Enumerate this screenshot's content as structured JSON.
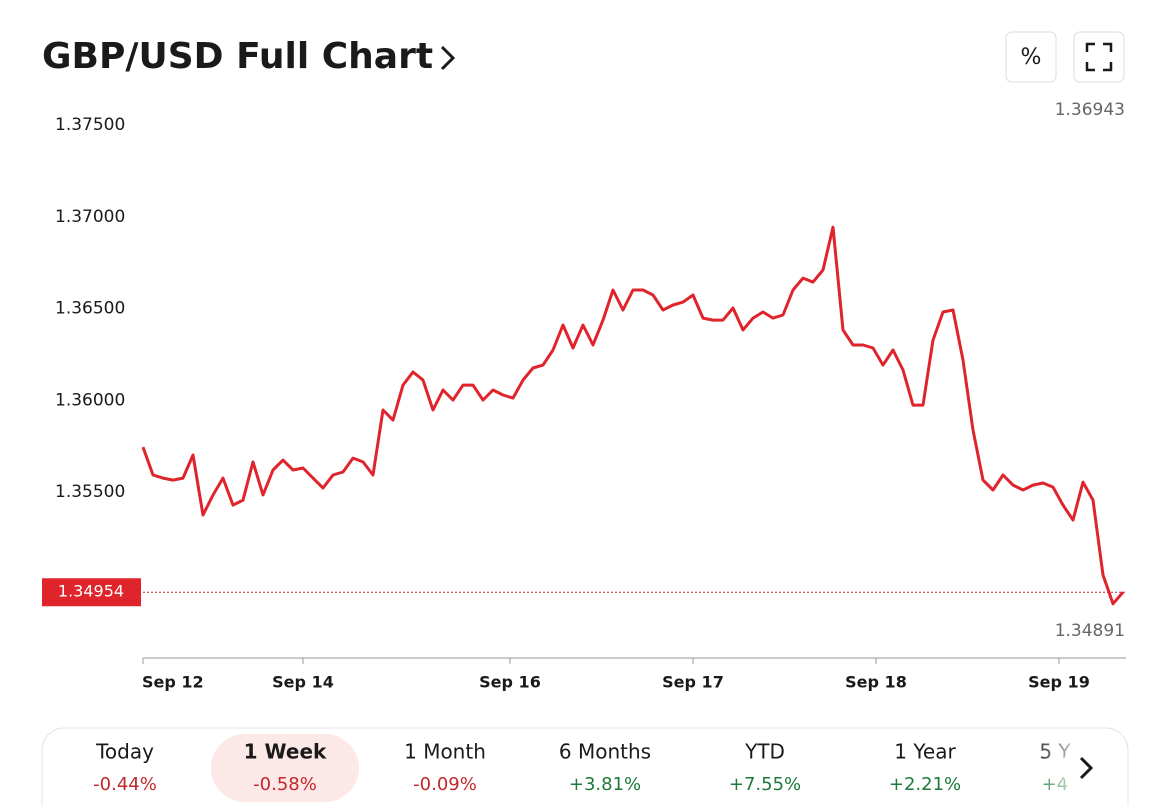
{
  "chart_data": {
    "type": "line",
    "title": "GBP/USD Full Chart",
    "buttons": [
      "%"
    ],
    "series": [
      {
        "name": "GBP/USD",
        "color": "#e0242b",
        "values": [
          1.35745,
          1.35593,
          1.35576,
          1.35565,
          1.35576,
          1.35702,
          1.35375,
          1.35484,
          1.35576,
          1.35429,
          1.35456,
          1.35664,
          1.35484,
          1.3562,
          1.35674,
          1.3562,
          1.35631,
          1.35576,
          1.35522,
          1.35593,
          1.35609,
          1.35685,
          1.35664,
          1.35593,
          1.35947,
          1.35892,
          1.36083,
          1.36154,
          1.3611,
          1.35947,
          1.36056,
          1.36001,
          1.36083,
          1.36083,
          1.36001,
          1.36056,
          1.36029,
          1.36012,
          1.3611,
          1.36176,
          1.36192,
          1.36274,
          1.3641,
          1.36285,
          1.3641,
          1.36301,
          1.36437,
          1.36601,
          1.36492,
          1.36601,
          1.36601,
          1.36574,
          1.36492,
          1.36519,
          1.36535,
          1.36574,
          1.36448,
          1.36437,
          1.36437,
          1.36503,
          1.36383,
          1.36448,
          1.36481,
          1.36448,
          1.36465,
          1.36601,
          1.36666,
          1.36644,
          1.3671,
          1.36943,
          1.36383,
          1.36301,
          1.36301,
          1.36285,
          1.36192,
          1.36274,
          1.36165,
          1.35974,
          1.35974,
          1.36328,
          1.36481,
          1.36492,
          1.36219,
          1.35838,
          1.35565,
          1.35511,
          1.35593,
          1.35538,
          1.35511,
          1.35538,
          1.35549,
          1.35527,
          1.35429,
          1.35347,
          1.35554,
          1.35456,
          1.35048,
          1.34891,
          1.34954
        ]
      }
    ],
    "xlim": [
      0,
      98.3
    ],
    "xticks": [
      {
        "value": 0,
        "label": "Sep 12"
      },
      {
        "value": 16,
        "label": "Sep 14"
      },
      {
        "value": 36.7,
        "label": "Sep 16"
      },
      {
        "value": 55,
        "label": "Sep 17"
      },
      {
        "value": 73.3,
        "label": "Sep 18"
      },
      {
        "value": 91.6,
        "label": "Sep 19"
      }
    ],
    "ylim": [
      1.346,
      1.3762
    ],
    "yticks": [
      {
        "value": 1.375,
        "label": "1.37500"
      },
      {
        "value": 1.37,
        "label": "1.37000"
      },
      {
        "value": 1.365,
        "label": "1.36500"
      },
      {
        "value": 1.36,
        "label": "1.36000"
      },
      {
        "value": 1.355,
        "label": "1.35500"
      }
    ],
    "high": {
      "value": 1.36943,
      "label": "1.36943"
    },
    "low": {
      "value": 1.34891,
      "label": "1.34891"
    },
    "last": {
      "value": 1.34954,
      "label": "1.34954"
    },
    "periods": [
      {
        "label": "Today",
        "change": "-0.44%"
      },
      {
        "label": "1 Week",
        "change": "-0.58%"
      },
      {
        "label": "1 Month",
        "change": "-0.09%"
      },
      {
        "label": "6 Months",
        "change": "+3.81%"
      },
      {
        "label": "YTD",
        "change": "+7.55%"
      },
      {
        "label": "1 Year",
        "change": "+2.21%"
      },
      {
        "label": "5 Y",
        "change": "+4"
      }
    ],
    "selected_period": 1
  }
}
